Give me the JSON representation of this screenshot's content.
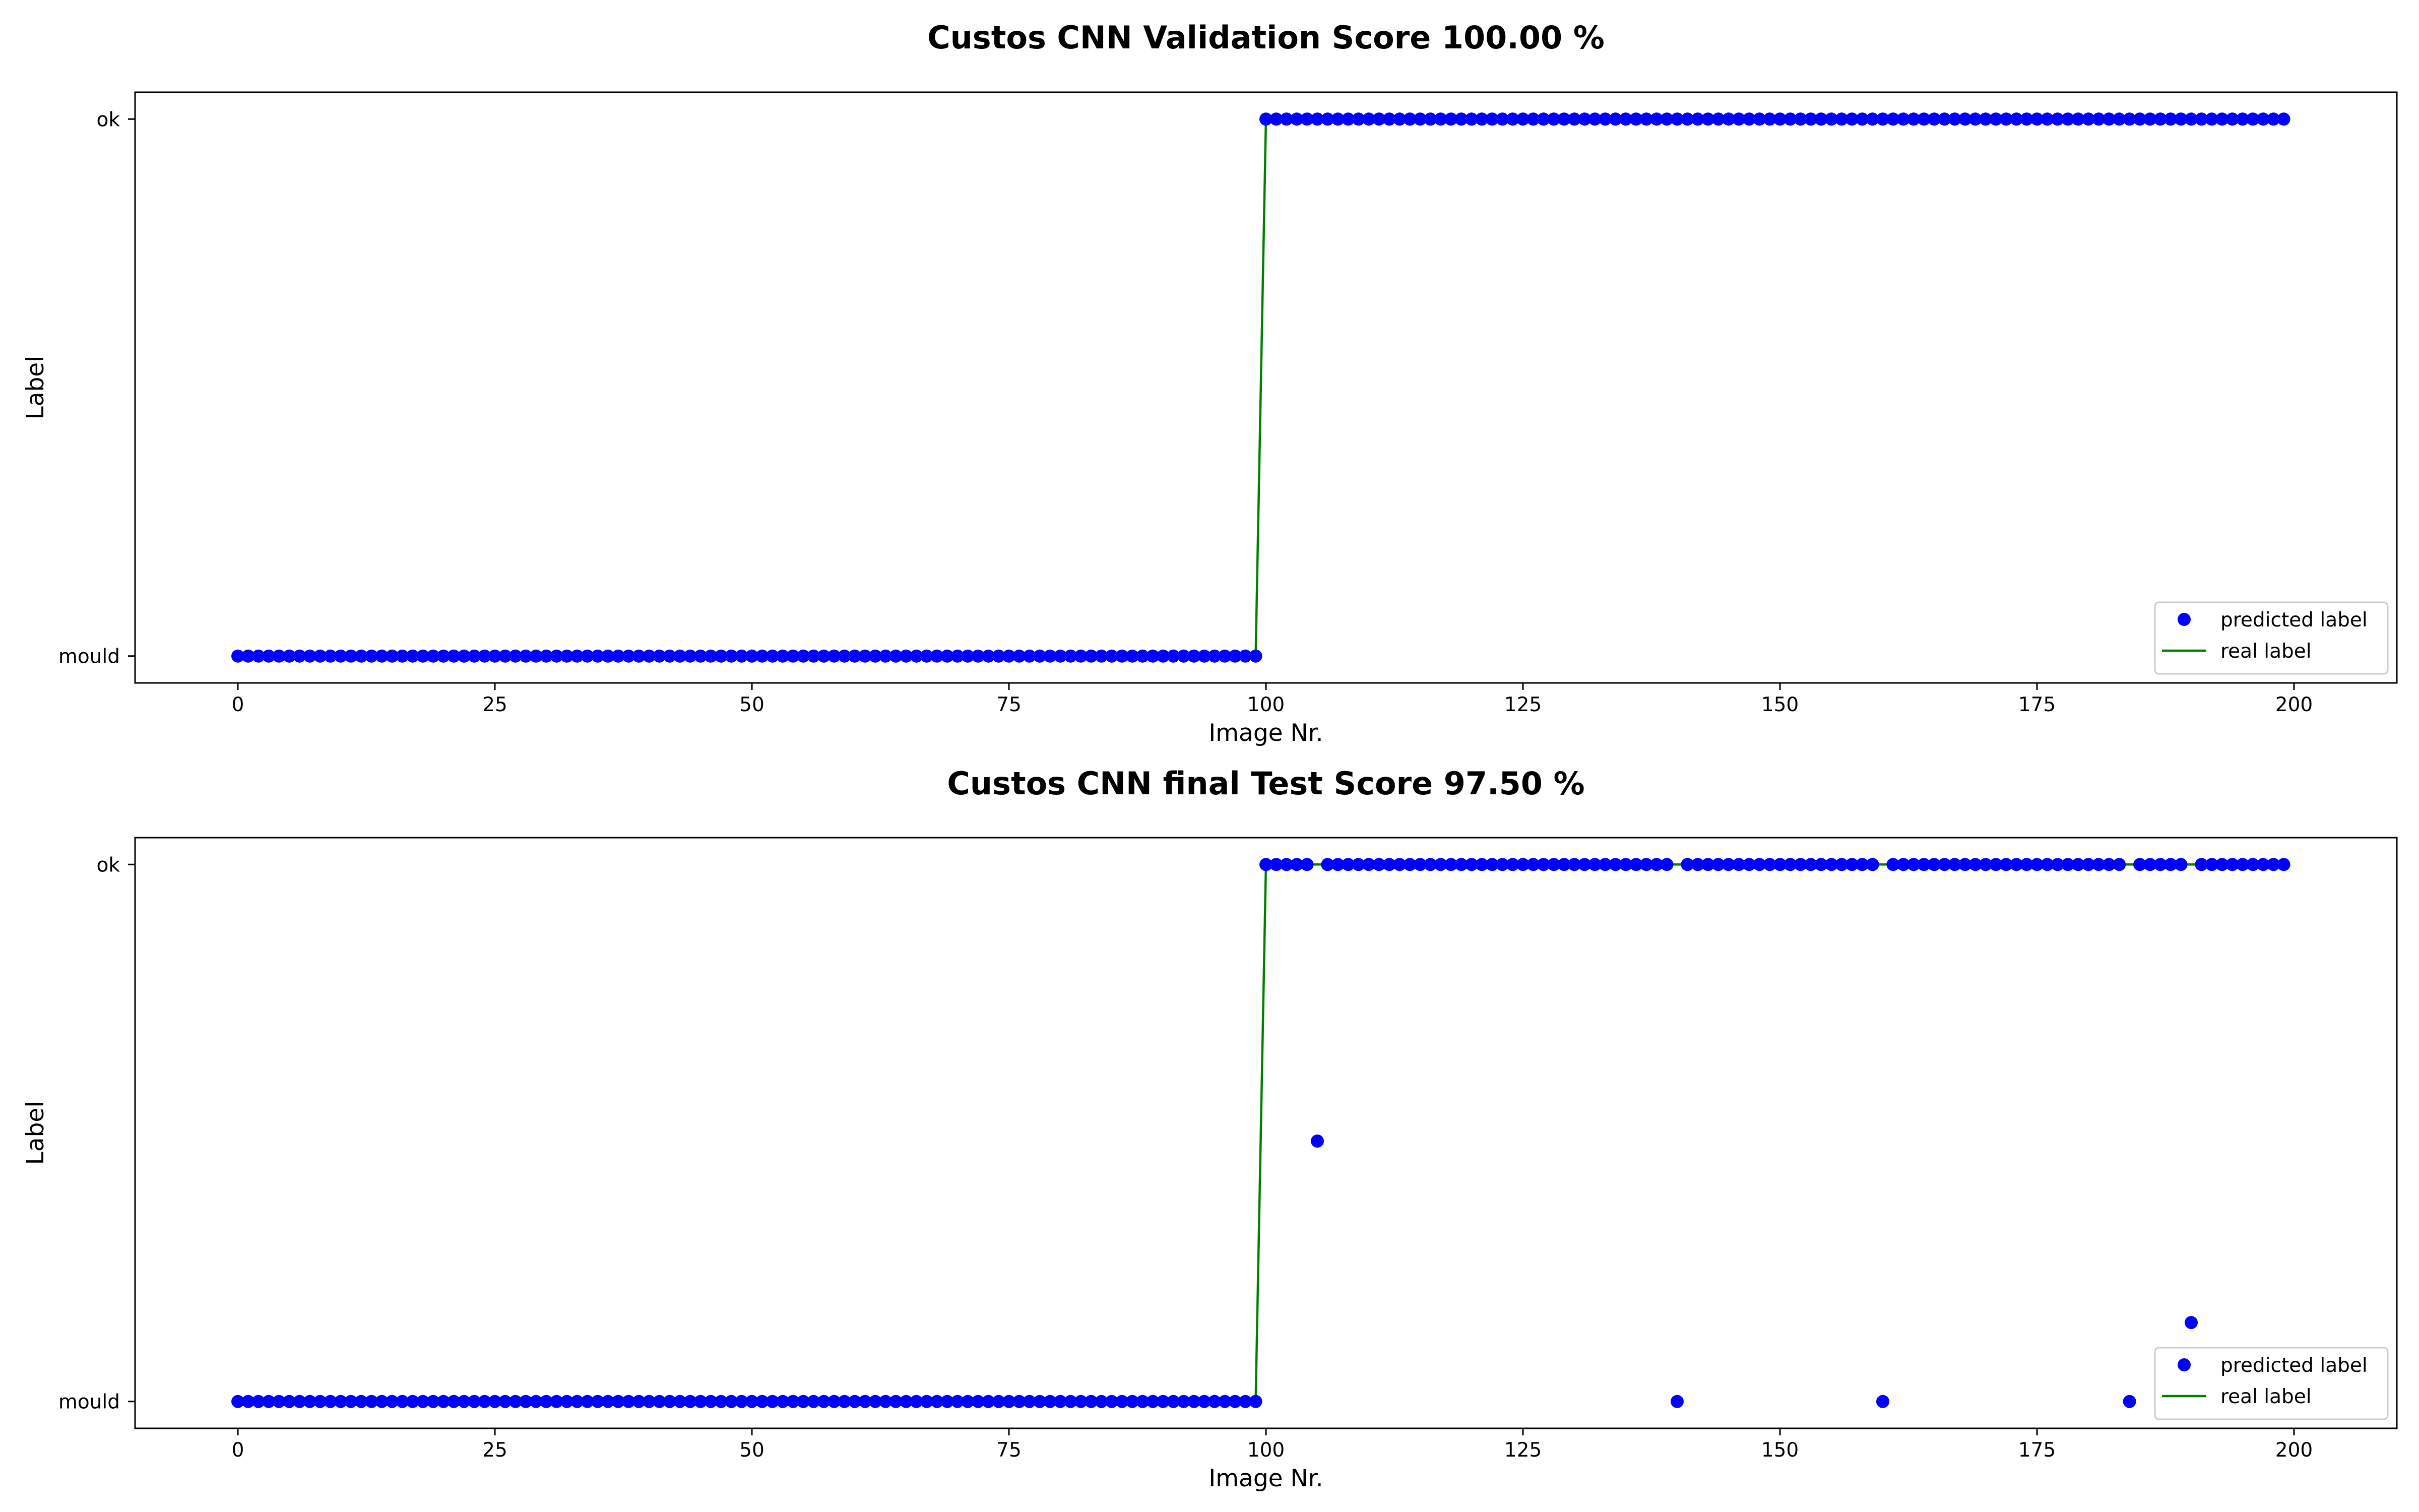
{
  "chart_data": [
    {
      "type": "scatter",
      "title": "Custos CNN Validation Score 100.00 %",
      "xlabel": "Image Nr.",
      "ylabel": "Label",
      "xlim": [
        -10,
        210
      ],
      "ylim": [
        -0.05,
        1.05
      ],
      "x_ticks": [
        0,
        25,
        50,
        75,
        100,
        125,
        150,
        175,
        200
      ],
      "y_ticks": [
        {
          "value": 0,
          "label": "mould"
        },
        {
          "value": 1,
          "label": "ok"
        }
      ],
      "grid": false,
      "legend": {
        "position": "lower right",
        "entries": [
          {
            "label": "predicted label",
            "color": "#0000ff",
            "kind": "marker"
          },
          {
            "label": "real label",
            "color": "#008000",
            "kind": "line"
          }
        ]
      },
      "series": [
        {
          "name": "predicted label",
          "color": "#0000ff",
          "mode": "markers",
          "x_start": 0,
          "x_end": 199,
          "default_y": 0,
          "default_y_from_x": 100,
          "default_y_after": 1,
          "overrides": []
        },
        {
          "name": "real label",
          "color": "#008000",
          "mode": "line",
          "x_start": 0,
          "x_end": 199,
          "default_y": 0,
          "default_y_from_x": 100,
          "default_y_after": 1,
          "overrides": []
        }
      ]
    },
    {
      "type": "scatter",
      "title": "Custos CNN final Test Score 97.50 %",
      "xlabel": "Image Nr.",
      "ylabel": "Label",
      "xlim": [
        -10,
        210
      ],
      "ylim": [
        -0.05,
        1.05
      ],
      "x_ticks": [
        0,
        25,
        50,
        75,
        100,
        125,
        150,
        175,
        200
      ],
      "y_ticks": [
        {
          "value": 0,
          "label": "mould"
        },
        {
          "value": 1,
          "label": "ok"
        }
      ],
      "grid": false,
      "legend": {
        "position": "lower right",
        "entries": [
          {
            "label": "predicted label",
            "color": "#0000ff",
            "kind": "marker"
          },
          {
            "label": "real label",
            "color": "#008000",
            "kind": "line"
          }
        ]
      },
      "series": [
        {
          "name": "predicted label",
          "color": "#0000ff",
          "mode": "markers",
          "x_start": 0,
          "x_end": 199,
          "default_y": 0,
          "default_y_from_x": 100,
          "default_y_after": 1,
          "overrides": [
            {
              "x": 105,
              "y": 0.485
            },
            {
              "x": 140,
              "y": 0
            },
            {
              "x": 160,
              "y": 0
            },
            {
              "x": 184,
              "y": 0
            },
            {
              "x": 190,
              "y": 0.147
            }
          ]
        },
        {
          "name": "real label",
          "color": "#008000",
          "mode": "line",
          "x_start": 0,
          "x_end": 199,
          "default_y": 0,
          "default_y_from_x": 100,
          "default_y_after": 1,
          "overrides": []
        }
      ]
    }
  ]
}
